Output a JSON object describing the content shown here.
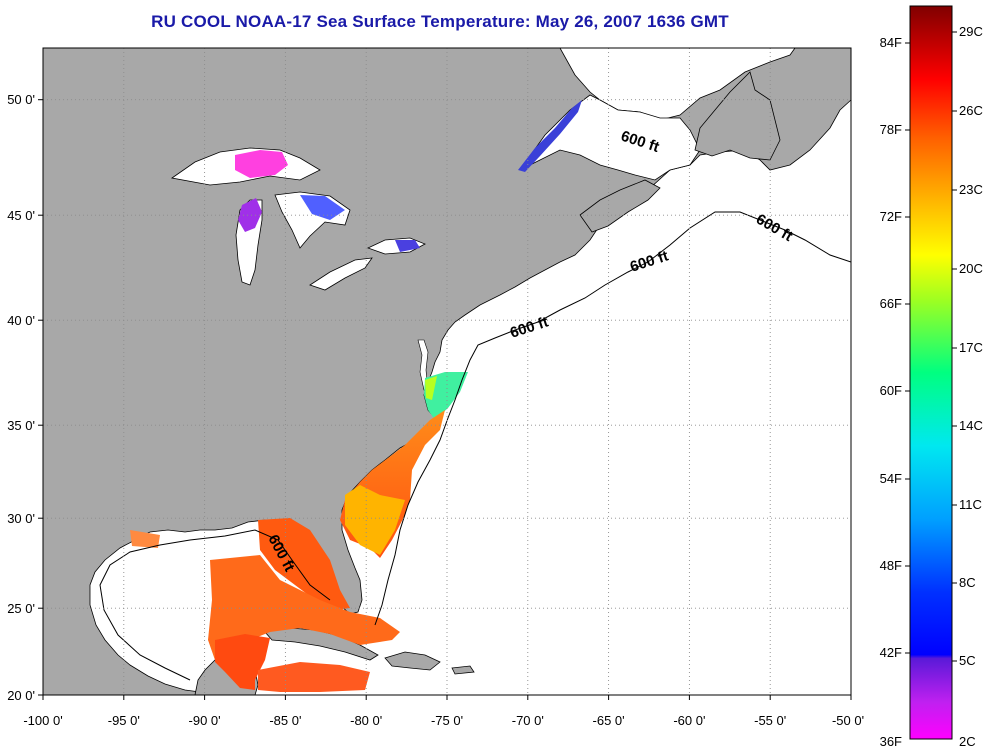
{
  "title": "RU COOL  NOAA-17  Sea Surface Temperature:  May 26, 2007 1636 GMT",
  "map": {
    "lon_range": [
      -100,
      -50
    ],
    "lat_range": [
      20,
      52.5
    ],
    "x_ticks": [
      "-100 0'",
      "-95 0'",
      "-90 0'",
      "-85 0'",
      "-80 0'",
      "-75 0'",
      "-70 0'",
      "-65 0'",
      "-60 0'",
      "-55 0'",
      "-50 0'"
    ],
    "y_ticks": [
      "50 0'",
      "45 0'",
      "40 0'",
      "35 0'",
      "30 0'",
      "25 0'",
      "20 0'"
    ],
    "contour_label": "600 ft",
    "colors": {
      "land": "#a8a8a8",
      "ocean": "#ffffff",
      "grid": "#8c8c8c"
    }
  },
  "colorbar": {
    "fahrenheit": [
      "84F",
      "78F",
      "72F",
      "66F",
      "60F",
      "54F",
      "48F",
      "42F",
      "36F"
    ],
    "celsius": [
      "29C",
      "26C",
      "23C",
      "20C",
      "17C",
      "14C",
      "11C",
      "8C",
      "5C",
      "2C"
    ]
  }
}
